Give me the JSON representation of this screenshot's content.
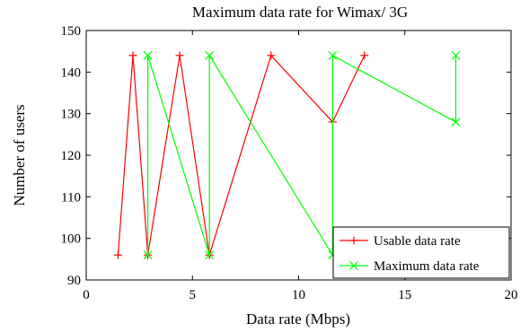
{
  "chart_data": {
    "type": "line",
    "title": "Maximum data rate for Wimax/ 3G",
    "xlabel": "Data rate (Mbps)",
    "ylabel": "Number of users",
    "xlim": [
      0,
      20
    ],
    "ylim": [
      90,
      150
    ],
    "xticks": [
      0,
      5,
      10,
      15,
      20
    ],
    "yticks": [
      90,
      100,
      110,
      120,
      130,
      140,
      150
    ],
    "xtick_labels": [
      "0",
      "5",
      "10",
      "15",
      "20"
    ],
    "ytick_labels": [
      "90",
      "100",
      "110",
      "120",
      "130",
      "140",
      "150"
    ],
    "grid": false,
    "legend_position": "bottom-right",
    "series": [
      {
        "name": "Usable data rate",
        "color": "#ff0000",
        "marker": "plus",
        "x": [
          1.5,
          2.2,
          2.9,
          4.4,
          5.8,
          8.7,
          11.6,
          13.1
        ],
        "y": [
          96,
          144,
          96,
          144,
          96,
          144,
          128,
          144
        ]
      },
      {
        "name": "Maximum data rate",
        "color": "#00ff00",
        "marker": "x",
        "x": [
          2.9,
          2.9,
          2.9,
          5.8,
          5.8,
          11.6,
          11.6,
          17.4,
          17.4
        ],
        "y": [
          144,
          96,
          144,
          96,
          144,
          96,
          144,
          128,
          144
        ]
      }
    ]
  }
}
